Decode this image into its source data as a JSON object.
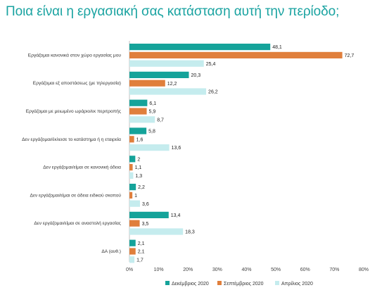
{
  "title": "Ποια είναι η εργασιακή σας κατάσταση αυτή την περίοδο;",
  "chart_data": {
    "type": "bar",
    "orientation": "horizontal",
    "categories": [
      "Εργάζομαι κανονικά στον χώρο εργασίας μου",
      "Εργάζομαι εξ αποστάσεως (με τηλεργασία)",
      "Εργάζομαι με μειωμένο ωράριο/εκ περιτροπής",
      "Δεν εργάζομαι/έκλεισε το κατάστημα ή η εταιρεία",
      "Δεν εργάζομαι/είμαι σε κανονική άδεια",
      "Δεν εργάζομαι/είμαι σε άδεια ειδικού σκοπού",
      "Δεν εργάζομαι/είμαι σε αναστολή εργασίας",
      "ΔΑ (αυθ.)"
    ],
    "series": [
      {
        "name": "Δεκέμβριος 2020",
        "color": "#15a39a",
        "values": [
          48.1,
          20.3,
          6.1,
          5.8,
          2,
          2.2,
          13.4,
          2.1
        ]
      },
      {
        "name": "Σεπτέμβριος 2020",
        "color": "#e07f3c",
        "values": [
          72.7,
          12.2,
          5.9,
          1.6,
          1.1,
          1,
          3.5,
          2.1
        ]
      },
      {
        "name": "Απρίλιος 2020",
        "color": "#c5ecee",
        "values": [
          25.4,
          26.2,
          8.7,
          13.6,
          1.3,
          3.6,
          18.3,
          1.7
        ]
      }
    ],
    "value_labels": [
      [
        "48,1",
        "20,3",
        "6,1",
        "5,8",
        "2",
        "2,2",
        "13,4",
        "2,1"
      ],
      [
        "72,7",
        "12,2",
        "5,9",
        "1,6",
        "1,1",
        "1",
        "3,5",
        "2,1"
      ],
      [
        "25,4",
        "26,2",
        "8,7",
        "13,6",
        "1,3",
        "3,6",
        "18,3",
        "1,7"
      ]
    ],
    "xlim": [
      0,
      80
    ],
    "xticks": [
      "0%",
      "10%",
      "20%",
      "30%",
      "40%",
      "50%",
      "60%",
      "70%",
      "80%"
    ],
    "grid": false,
    "legend_position": "bottom"
  }
}
